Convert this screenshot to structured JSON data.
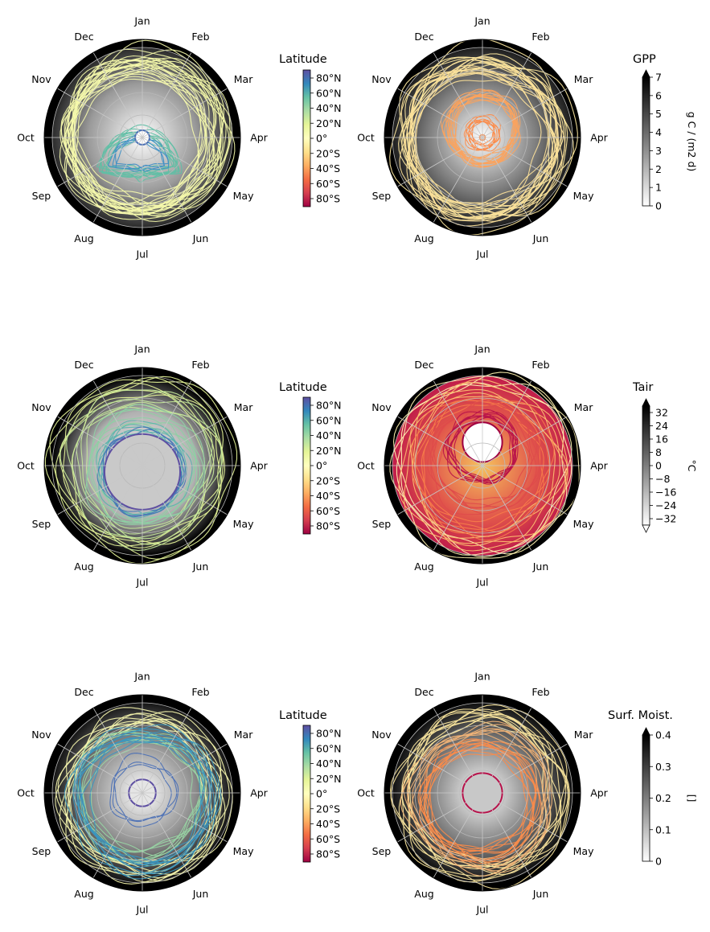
{
  "months": [
    "Jan",
    "Feb",
    "Mar",
    "Apr",
    "May",
    "Jun",
    "Jul",
    "Aug",
    "Sep",
    "Oct",
    "Nov",
    "Dec"
  ],
  "latitude_colorbar": {
    "title": "Latitude",
    "ticks": [
      "80°N",
      "60°N",
      "40°N",
      "20°N",
      "0°",
      "20°S",
      "40°S",
      "60°S",
      "80°S"
    ],
    "colormap": [
      "#5e4fa2",
      "#3288bd",
      "#66c2a5",
      "#abdda4",
      "#e6f598",
      "#ffffbf",
      "#fee08b",
      "#fdae61",
      "#f46d43",
      "#d53e4f",
      "#9e0142"
    ]
  },
  "chart_data": [
    {
      "type": "line",
      "projection": "polar",
      "panel": "top-left",
      "angular_axis": "month",
      "background_field": "GPP",
      "trajectory_color": "Latitude",
      "lines": [
        {
          "color": "#f3f7a8",
          "r": 0.88,
          "dx": 0.04,
          "dy": -0.02,
          "rot": 0.6,
          "count": 14
        },
        {
          "color": "#f6faae",
          "r": 0.78,
          "dx": -0.06,
          "dy": 0.02,
          "rot": 1.2,
          "count": 10
        },
        {
          "color": "#5fbfa5",
          "r": 0.42,
          "dx": -0.05,
          "dy": 0.36,
          "rot": 0,
          "count": 10,
          "tail": true
        },
        {
          "color": "#3f8fc4",
          "r": 0.3,
          "dx": -0.03,
          "dy": 0.3,
          "rot": 0,
          "count": 4,
          "tail": true
        }
      ],
      "hole": {
        "r": 0.08,
        "dy": 0.0,
        "color": "#ffffff",
        "stroke": "#4a6fb5"
      },
      "bg": {
        "inner": "#ffffff",
        "mid": "#9a9a9a",
        "outer": "#2a2a2a"
      }
    },
    {
      "type": "line",
      "projection": "polar",
      "panel": "top-right",
      "angular_axis": "month",
      "background_field": "GPP",
      "trajectory_color": "Latitude",
      "lines": [
        {
          "color": "#fde8a0",
          "r": 0.94,
          "dx": 0.0,
          "dy": 0.0,
          "rot": 0,
          "count": 10
        },
        {
          "color": "#fde29a",
          "r": 0.82,
          "dx": -0.02,
          "dy": 0.04,
          "rot": 0.5,
          "count": 12
        },
        {
          "color": "#fca35c",
          "r": 0.38,
          "dx": 0.0,
          "dy": -0.1,
          "rot": 0.9,
          "count": 12
        },
        {
          "color": "#fb8b4a",
          "r": 0.16,
          "dx": 0.0,
          "dy": -0.05,
          "rot": 0.3,
          "count": 8
        }
      ],
      "hole": {
        "r": 0.03,
        "dy": 0.0,
        "color": "#ffffff",
        "stroke": "#fb8b4a"
      },
      "bg": {
        "inner": "#ffffff",
        "mid": "#7d7d7d",
        "outer": "#1e1e1e"
      }
    },
    {
      "type": "line",
      "projection": "polar",
      "panel": "middle-left",
      "angular_axis": "month",
      "background_field": "Tair",
      "trajectory_color": "Latitude",
      "lines": [
        {
          "color": "#e6f598",
          "r": 0.96,
          "dx": 0.0,
          "dy": 0.0,
          "rot": 0,
          "count": 6
        },
        {
          "color": "#c5e89a",
          "r": 0.8,
          "dx": 0.0,
          "dy": 0.0,
          "rot": 0,
          "count": 6
        },
        {
          "color": "#8ed0a4",
          "r": 0.62,
          "dx": 0.0,
          "dy": 0.03,
          "rot": 0,
          "count": 6
        },
        {
          "color": "#5ab3ad",
          "r": 0.5,
          "dx": 0.0,
          "dy": 0.05,
          "rot": 0,
          "count": 6
        },
        {
          "color": "#4473b6",
          "r": 0.44,
          "dx": 0.0,
          "dy": 0.07,
          "rot": 0,
          "count": 6
        }
      ],
      "hole": {
        "r": 0.42,
        "dy": 0.07,
        "color": "#c9c9c9",
        "stroke": "#5e4fa2"
      },
      "bg": {
        "inner": "#ffffff",
        "mid": "#b0b0b0",
        "outer": "#000000"
      }
    },
    {
      "type": "line",
      "projection": "polar",
      "panel": "middle-right",
      "angular_axis": "month",
      "background_field": "Tair",
      "trajectory_color": "Latitude",
      "lines": [
        {
          "color": "#fff3b0",
          "r": 0.98,
          "dx": 0.0,
          "dy": 0.0,
          "rot": 0,
          "count": 4
        },
        {
          "color": "#fdbf6f",
          "r": 0.86,
          "dx": 0.0,
          "dy": 0.0,
          "rot": 0,
          "count": 5
        },
        {
          "color": "#f67c4a",
          "r": 0.72,
          "dx": 0.0,
          "dy": 0.0,
          "rot": 0,
          "count": 5
        },
        {
          "color": "#de4b4b",
          "r": 0.58,
          "dx": 0.0,
          "dy": -0.06,
          "rot": 0,
          "count": 6
        },
        {
          "color": "#b7114a",
          "r": 0.38,
          "dx": 0.0,
          "dy": -0.18,
          "rot": 0,
          "count": 8
        }
      ],
      "hole": {
        "r": 0.22,
        "dy": -0.26,
        "color": "#ffffff",
        "stroke": "#9e0142"
      },
      "bg": {
        "inner": "#f6c25d",
        "mid": "#e1554b",
        "outer": "#c01c4a"
      },
      "filled": true
    },
    {
      "type": "line",
      "projection": "polar",
      "panel": "bottom-left",
      "angular_axis": "month",
      "background_field": "Surf. Moist.",
      "trajectory_color": "Latitude",
      "lines": [
        {
          "color": "#f6f6ae",
          "r": 0.88,
          "dx": 0.0,
          "dy": 0.04,
          "rot": 0,
          "count": 10
        },
        {
          "color": "#98d4a4",
          "r": 0.7,
          "dx": 0.0,
          "dy": 0.02,
          "rot": 0,
          "count": 8
        },
        {
          "color": "#3a96c0",
          "r": 0.76,
          "dx": 0.04,
          "dy": 0.08,
          "rot": 0.4,
          "count": 10
        },
        {
          "color": "#4a6fb5",
          "r": 0.36,
          "dx": 0.0,
          "dy": 0.0,
          "rot": 0,
          "count": 3
        }
      ],
      "hole": {
        "r": 0.15,
        "dy": 0.0,
        "color": "#e5e5e5",
        "stroke": "#5e4fa2"
      },
      "bg": {
        "inner": "#ffffff",
        "mid": "#8a8a8a",
        "outer": "#151515"
      }
    },
    {
      "type": "line",
      "projection": "polar",
      "panel": "bottom-right",
      "angular_axis": "month",
      "background_field": "Surf. Moist.",
      "trajectory_color": "Latitude",
      "lines": [
        {
          "color": "#fde8a0",
          "r": 0.9,
          "dx": 0.0,
          "dy": 0.02,
          "rot": 0,
          "count": 10
        },
        {
          "color": "#f1b377",
          "r": 0.76,
          "dx": 0.0,
          "dy": 0.05,
          "rot": 0,
          "count": 8
        },
        {
          "color": "#fb8b4a",
          "r": 0.62,
          "dx": -0.04,
          "dy": 0.08,
          "rot": 0.3,
          "count": 10
        }
      ],
      "hole": {
        "r": 0.22,
        "dy": 0.0,
        "color": "#c8c8c8",
        "stroke": "#b7114a"
      },
      "bg": {
        "inner": "#ffffff",
        "mid": "#7a7a7a",
        "outer": "#101010"
      }
    }
  ],
  "colorbars": [
    {
      "panel": "top-left",
      "kind": "latitude",
      "title": "Latitude"
    },
    {
      "panel": "top-right",
      "kind": "gray",
      "title": "GPP",
      "unit": "g C / (m2 d)",
      "ticks": [
        "7",
        "6",
        "5",
        "4",
        "3",
        "2",
        "1",
        "0"
      ],
      "extend": "max"
    },
    {
      "panel": "middle-left",
      "kind": "latitude",
      "title": "Latitude"
    },
    {
      "panel": "middle-right",
      "kind": "gray",
      "title": "Tair",
      "unit": "°C",
      "ticks": [
        "32",
        "24",
        "16",
        "8",
        "0",
        "−8",
        "−16",
        "−24",
        "−32"
      ],
      "extend": "both"
    },
    {
      "panel": "bottom-left",
      "kind": "latitude",
      "title": "Latitude"
    },
    {
      "panel": "bottom-right",
      "kind": "gray",
      "title": "Surf. Moist.",
      "unit": "[]",
      "ticks": [
        "0.4",
        "0.3",
        "0.2",
        "0.1",
        "0"
      ],
      "extend": "max"
    }
  ]
}
